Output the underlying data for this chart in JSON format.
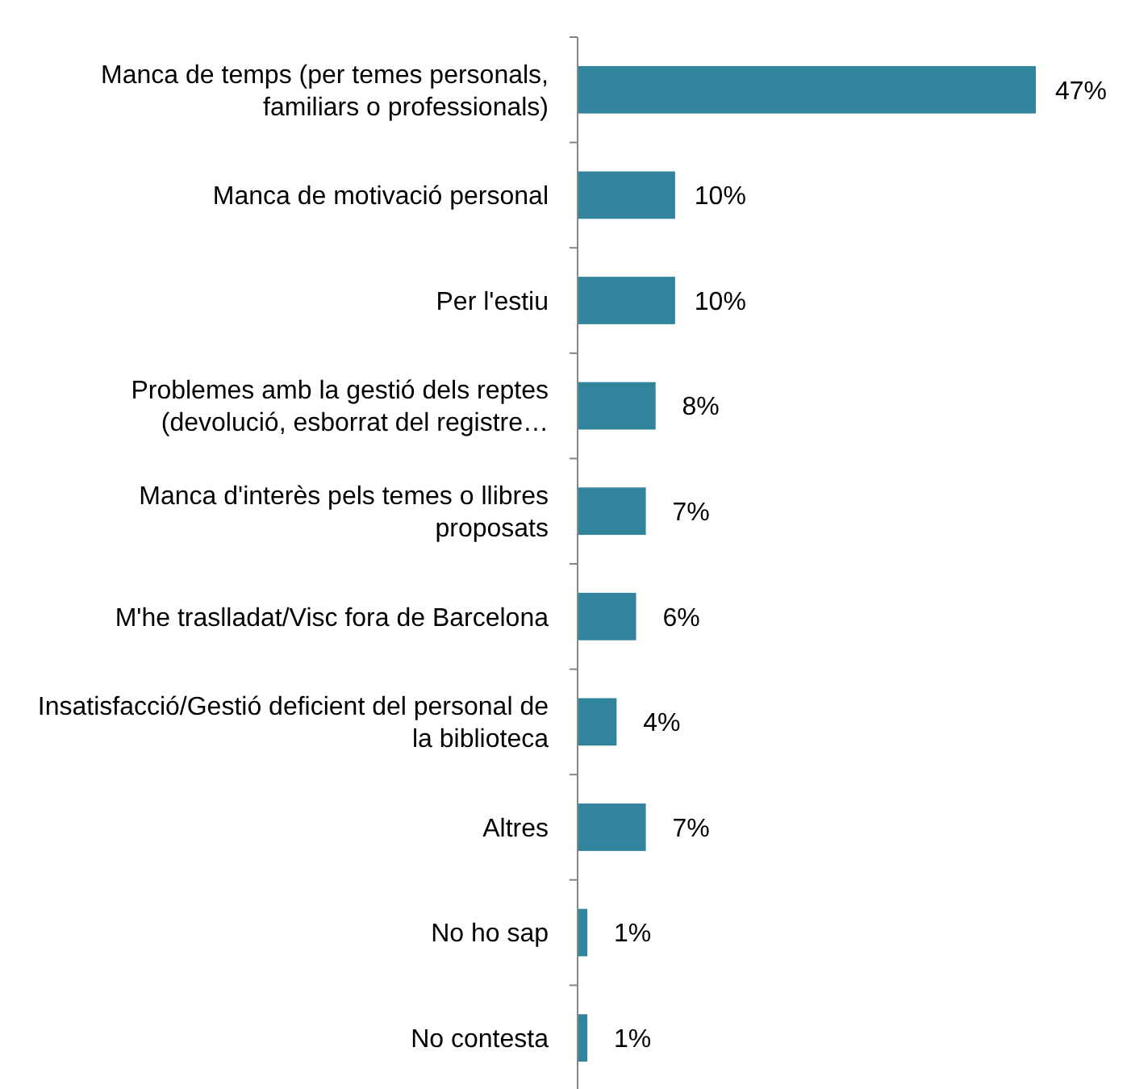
{
  "chart_data": {
    "type": "bar",
    "orientation": "horizontal",
    "categories": [
      "Manca de temps (per temes personals, familiars o professionals)",
      "Manca de motivació personal",
      "Per l'estiu",
      "Problemes amb la gestió dels reptes (devolució, esborrat del registre…",
      "Manca d'interès pels temes o llibres proposats",
      "M'he traslladat/Visc fora de Barcelona",
      "Insatisfacció/Gestió deficient del personal de la biblioteca",
      "Altres",
      "No ho sap",
      "No contesta"
    ],
    "values": [
      47,
      10,
      10,
      8,
      7,
      6,
      4,
      7,
      1,
      1
    ],
    "value_labels": [
      "47%",
      "10%",
      "10%",
      "8%",
      "7%",
      "6%",
      "4%",
      "7%",
      "1%",
      "1%"
    ],
    "color": "#31849b"
  }
}
